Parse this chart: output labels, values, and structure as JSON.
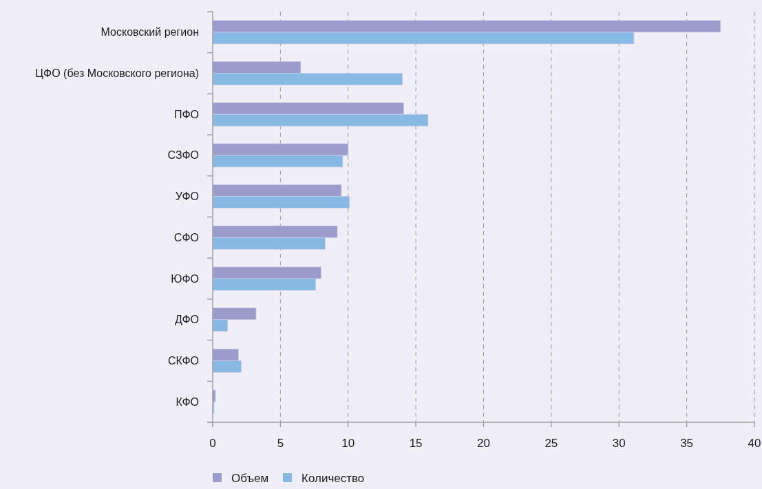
{
  "chart_data": {
    "type": "bar",
    "orientation": "horizontal",
    "categories": [
      "Московский регион",
      "ЦФО (без Московского региона)",
      "ПФО",
      "СЗФО",
      "УФО",
      "СФО",
      "ЮФО",
      "ДФО",
      "СКФО",
      "КФО"
    ],
    "series": [
      {
        "name": "Объем",
        "color": "#9b9bcc",
        "values": [
          37.5,
          6.5,
          14.1,
          10.0,
          9.5,
          9.2,
          8.0,
          3.2,
          1.9,
          0.2
        ]
      },
      {
        "name": "Количество",
        "color": "#86b9e4",
        "values": [
          31.1,
          14.0,
          15.9,
          9.6,
          10.1,
          8.3,
          7.6,
          1.1,
          2.1,
          0.1
        ]
      }
    ],
    "xlim": [
      0,
      40
    ],
    "xticks": [
      0,
      5,
      10,
      15,
      20,
      25,
      30,
      35,
      40
    ],
    "grid": "x",
    "legend": "bottom"
  }
}
